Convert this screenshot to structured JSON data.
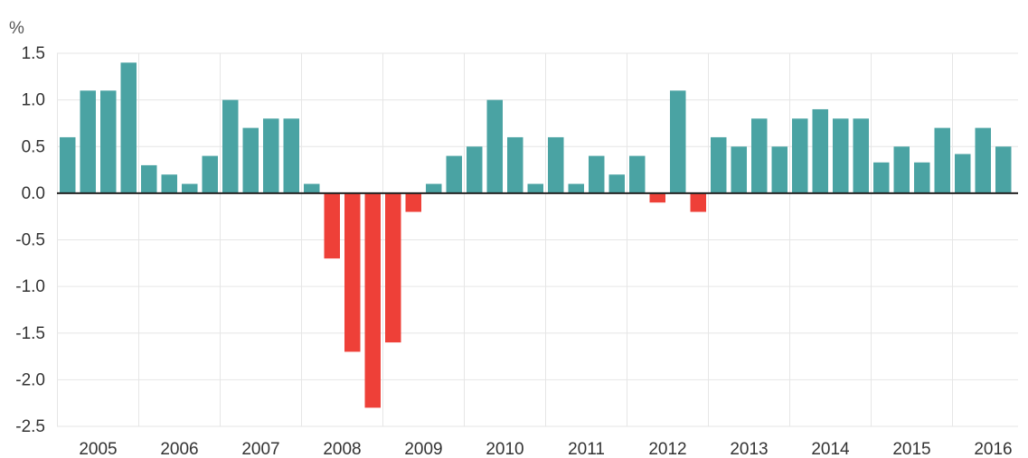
{
  "chart_data": {
    "type": "bar",
    "ylabel": "%",
    "ylim": [
      -2.5,
      1.5
    ],
    "yticks": [
      "1.5",
      "1.0",
      "0.5",
      "0.0",
      "-0.5",
      "-1.0",
      "-1.5",
      "-2.0",
      "-2.5"
    ],
    "ytick_values": [
      1.5,
      1.0,
      0.5,
      0.0,
      -0.5,
      -1.0,
      -1.5,
      -2.0,
      -2.5
    ],
    "year_labels": [
      "2005",
      "2006",
      "2007",
      "2008",
      "2009",
      "2010",
      "2011",
      "2012",
      "2013",
      "2014",
      "2015",
      "2016"
    ],
    "quarters_per_year": 4,
    "grid": true,
    "colors": {
      "positive": "#4aa3a3",
      "negative": "#ee4038",
      "axis": "#222222",
      "grid": "#e6e6e6"
    },
    "values": [
      0.6,
      1.1,
      1.1,
      1.4,
      0.3,
      0.2,
      0.1,
      0.4,
      1.0,
      0.7,
      0.8,
      0.8,
      0.1,
      -0.7,
      -1.7,
      -2.3,
      -1.6,
      -0.2,
      0.1,
      0.4,
      0.5,
      1.0,
      0.6,
      0.1,
      0.6,
      0.1,
      0.4,
      0.2,
      0.4,
      -0.1,
      1.1,
      -0.2,
      0.6,
      0.5,
      0.8,
      0.5,
      0.8,
      0.9,
      0.8,
      0.8,
      0.33,
      0.5,
      0.33,
      0.7,
      0.42,
      0.7,
      0.5
    ]
  }
}
